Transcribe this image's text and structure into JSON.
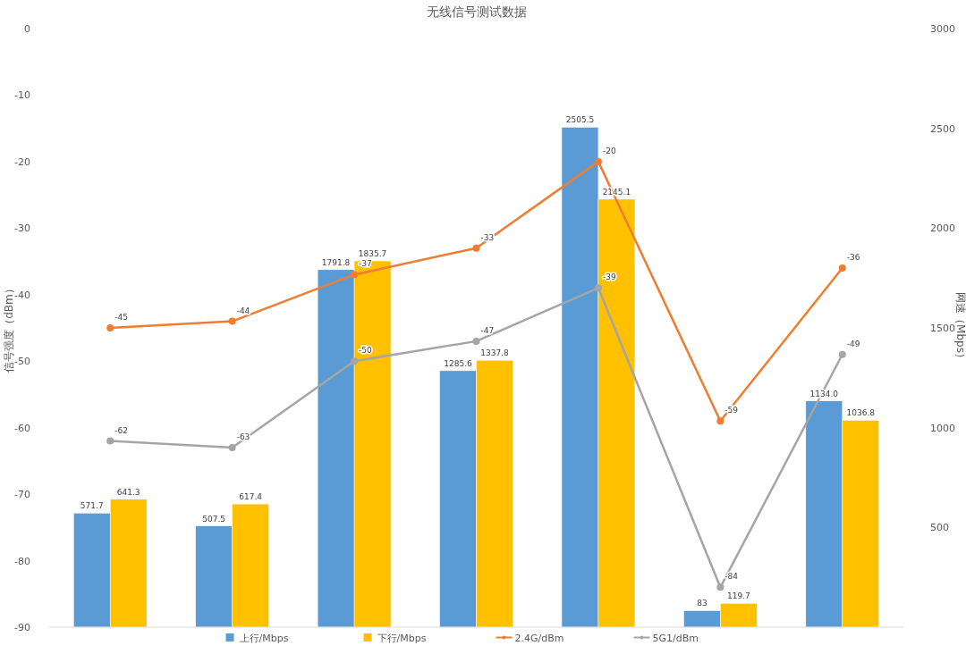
{
  "chart_data": {
    "type": "bar",
    "title": "无线信号测试数据",
    "ylabel": "信号强度（dBm）",
    "y2label": "网速（Mbps）",
    "categories": [
      null,
      null,
      null,
      null,
      null,
      null,
      null
    ],
    "series": [
      {
        "name": "上行/Mbps",
        "axis": "y2",
        "color": "#5b9bd5",
        "values": [
          571.7,
          507.5,
          1791.8,
          1285.6,
          2505.5,
          83,
          1134.0
        ],
        "value_labels": [
          "571.7",
          "507.5",
          "1791.8",
          "1285.6",
          "2505.5",
          "83",
          "1134.0"
        ]
      },
      {
        "name": "下行/Mbps",
        "axis": "y2",
        "color": "#ffc000",
        "values": [
          641.3,
          617.4,
          1835.7,
          1337.8,
          2145.1,
          119.7,
          1036.8
        ],
        "value_labels": [
          "641.3",
          "617.4",
          "1835.7",
          "1337.8",
          "2145.1",
          "119.7",
          "1036.8"
        ]
      },
      {
        "name": "2.4G/dBm",
        "type": "line",
        "color": "#ed7d31",
        "values": [
          -45,
          -44,
          -37,
          -33,
          -20,
          -59,
          -36
        ],
        "value_labels": [
          "-45",
          "-44",
          "-37",
          "-33",
          "-20",
          "-59",
          "-36"
        ]
      },
      {
        "name": "5G1/dBm",
        "type": "line",
        "color": "#a5a5a5",
        "values": [
          -62,
          -63,
          -50,
          -47,
          -39,
          -84,
          -49
        ],
        "value_labels": [
          "-62",
          "-63",
          "-50",
          "-47",
          "-39",
          "-84",
          "-49"
        ]
      }
    ],
    "ylim": [
      -90,
      0
    ],
    "yticks": [
      0,
      -10,
      -20,
      -30,
      -40,
      -50,
      -60,
      -70,
      -80,
      -90
    ],
    "y2lim": [
      0,
      3000
    ],
    "y2ticks": [
      500,
      1000,
      1500,
      2000,
      2500,
      3000
    ],
    "legend": "bottom",
    "marker": "circle",
    "grid": false
  }
}
